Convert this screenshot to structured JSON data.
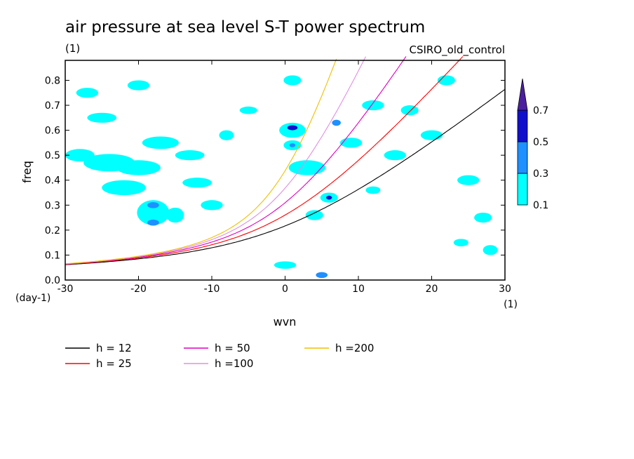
{
  "chart_data": {
    "type": "heatmap",
    "title": "air pressure at sea level S-T power spectrum",
    "units": "(1)",
    "model": "CSIRO_old_control",
    "xlabel": "wvn",
    "ylabel": "freq",
    "x_units": "(1)",
    "y_units": "(day-1)",
    "xlim": [
      -30,
      30
    ],
    "ylim": [
      0,
      0.88
    ],
    "xticks": [
      -30,
      -20,
      -10,
      0,
      10,
      20,
      30
    ],
    "yticks": [
      0.0,
      0.1,
      0.2,
      0.3,
      0.4,
      0.5,
      0.6,
      0.7,
      0.8
    ],
    "ytick_labels": [
      "0.0",
      "0.1",
      "0.2",
      "0.3",
      "0.4",
      "0.5",
      "0.6",
      "0.7",
      "0.8"
    ],
    "colorbar": {
      "levels": [
        0.1,
        0.3,
        0.5,
        0.7
      ],
      "labels": [
        "0.1",
        "0.3",
        "0.5",
        "0.7"
      ],
      "colors": [
        "#00ffff",
        "#1e90ff",
        "#1010cc",
        "#4b1fa0"
      ]
    },
    "contour_regions": [
      {
        "x": -28,
        "y": 0.5,
        "rx": 2.0,
        "ry": 0.025,
        "level": 0.1
      },
      {
        "x": -24,
        "y": 0.47,
        "rx": 3.5,
        "ry": 0.035,
        "level": 0.1
      },
      {
        "x": -22,
        "y": 0.37,
        "rx": 3.0,
        "ry": 0.03,
        "level": 0.1
      },
      {
        "x": -18,
        "y": 0.27,
        "rx": 2.2,
        "ry": 0.05,
        "level": 0.1
      },
      {
        "x": -18,
        "y": 0.23,
        "rx": 0.8,
        "ry": 0.012,
        "level": 0.3
      },
      {
        "x": -18,
        "y": 0.3,
        "rx": 0.8,
        "ry": 0.012,
        "level": 0.3
      },
      {
        "x": -15,
        "y": 0.26,
        "rx": 1.2,
        "ry": 0.03,
        "level": 0.1
      },
      {
        "x": -20,
        "y": 0.45,
        "rx": 3.0,
        "ry": 0.03,
        "level": 0.1
      },
      {
        "x": -17,
        "y": 0.55,
        "rx": 2.5,
        "ry": 0.025,
        "level": 0.1
      },
      {
        "x": -25,
        "y": 0.65,
        "rx": 2.0,
        "ry": 0.02,
        "level": 0.1
      },
      {
        "x": -27,
        "y": 0.75,
        "rx": 1.5,
        "ry": 0.02,
        "level": 0.1
      },
      {
        "x": -12,
        "y": 0.39,
        "rx": 2.0,
        "ry": 0.02,
        "level": 0.1
      },
      {
        "x": -13,
        "y": 0.5,
        "rx": 2.0,
        "ry": 0.02,
        "level": 0.1
      },
      {
        "x": -10,
        "y": 0.3,
        "rx": 1.5,
        "ry": 0.02,
        "level": 0.1
      },
      {
        "x": 1,
        "y": 0.6,
        "rx": 1.8,
        "ry": 0.03,
        "level": 0.1
      },
      {
        "x": 1,
        "y": 0.61,
        "rx": 0.7,
        "ry": 0.01,
        "level": 0.5
      },
      {
        "x": 1,
        "y": 0.54,
        "rx": 1.2,
        "ry": 0.02,
        "level": 0.1
      },
      {
        "x": 1,
        "y": 0.54,
        "rx": 0.4,
        "ry": 0.008,
        "level": 0.3
      },
      {
        "x": 3,
        "y": 0.45,
        "rx": 2.5,
        "ry": 0.03,
        "level": 0.1
      },
      {
        "x": 6,
        "y": 0.33,
        "rx": 1.2,
        "ry": 0.02,
        "level": 0.1
      },
      {
        "x": 6,
        "y": 0.33,
        "rx": 0.4,
        "ry": 0.008,
        "level": 0.5
      },
      {
        "x": 7,
        "y": 0.63,
        "rx": 0.6,
        "ry": 0.012,
        "level": 0.3
      },
      {
        "x": 9,
        "y": 0.55,
        "rx": 1.5,
        "ry": 0.02,
        "level": 0.1
      },
      {
        "x": 5,
        "y": 0.02,
        "rx": 0.8,
        "ry": 0.012,
        "level": 0.3
      },
      {
        "x": 1,
        "y": 0.8,
        "rx": 1.2,
        "ry": 0.02,
        "level": 0.1
      },
      {
        "x": 0,
        "y": 0.06,
        "rx": 1.5,
        "ry": 0.015,
        "level": 0.1
      },
      {
        "x": 15,
        "y": 0.5,
        "rx": 1.5,
        "ry": 0.02,
        "level": 0.1
      },
      {
        "x": 20,
        "y": 0.58,
        "rx": 1.5,
        "ry": 0.02,
        "level": 0.1
      },
      {
        "x": 25,
        "y": 0.4,
        "rx": 1.5,
        "ry": 0.02,
        "level": 0.1
      },
      {
        "x": 22,
        "y": 0.8,
        "rx": 1.2,
        "ry": 0.02,
        "level": 0.1
      },
      {
        "x": 27,
        "y": 0.25,
        "rx": 1.2,
        "ry": 0.02,
        "level": 0.1
      },
      {
        "x": 28,
        "y": 0.12,
        "rx": 1.0,
        "ry": 0.02,
        "level": 0.1
      },
      {
        "x": -5,
        "y": 0.68,
        "rx": 1.2,
        "ry": 0.015,
        "level": 0.1
      },
      {
        "x": -20,
        "y": 0.78,
        "rx": 1.5,
        "ry": 0.02,
        "level": 0.1
      },
      {
        "x": 12,
        "y": 0.7,
        "rx": 1.5,
        "ry": 0.02,
        "level": 0.1
      },
      {
        "x": 17,
        "y": 0.68,
        "rx": 1.2,
        "ry": 0.02,
        "level": 0.1
      },
      {
        "x": 4,
        "y": 0.26,
        "rx": 1.2,
        "ry": 0.02,
        "level": 0.1
      },
      {
        "x": -8,
        "y": 0.58,
        "rx": 1.0,
        "ry": 0.02,
        "level": 0.1
      },
      {
        "x": 24,
        "y": 0.15,
        "rx": 1.0,
        "ry": 0.015,
        "level": 0.1
      },
      {
        "x": 12,
        "y": 0.36,
        "rx": 1.0,
        "ry": 0.015,
        "level": 0.1
      }
    ],
    "series": [
      {
        "name": "h = 12",
        "color": "#000000",
        "h": 12
      },
      {
        "name": "h = 25",
        "color": "#ff0000",
        "h": 25
      },
      {
        "name": "h = 50",
        "color": "#e000c0",
        "h": 50
      },
      {
        "name": "h =100",
        "color": "#e090e0",
        "h": 100
      },
      {
        "name": "h =200",
        "color": "#f0c000",
        "h": 200
      }
    ]
  }
}
